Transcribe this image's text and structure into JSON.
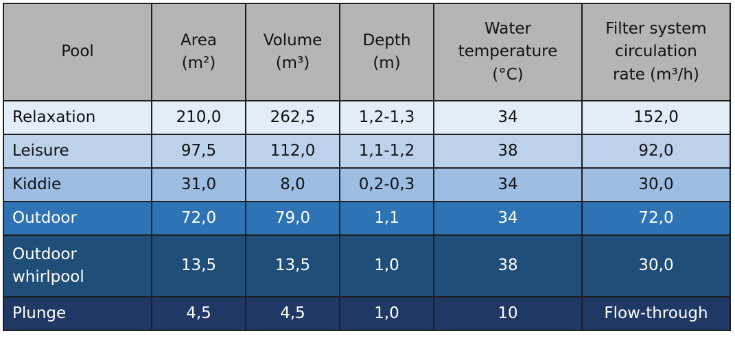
{
  "table": {
    "headers": [
      {
        "lines": [
          "Pool"
        ]
      },
      {
        "lines": [
          "Area",
          "(m²)"
        ]
      },
      {
        "lines": [
          "Volume",
          "(m³)"
        ]
      },
      {
        "lines": [
          "Depth",
          "(m)"
        ]
      },
      {
        "lines": [
          "Water",
          "temperature",
          "(°C)"
        ]
      },
      {
        "lines": [
          "Filter system",
          "circulation",
          "rate (m³/h)"
        ]
      }
    ],
    "rows": [
      {
        "pool": [
          "Relaxation"
        ],
        "area": "210,0",
        "volume": "262,5",
        "depth": "1,2-1,3",
        "temp": "34",
        "rate": "152,0"
      },
      {
        "pool": [
          "Leisure"
        ],
        "area": "97,5",
        "volume": "112,0",
        "depth": "1,1-1,2",
        "temp": "38",
        "rate": "92,0"
      },
      {
        "pool": [
          "Kiddie"
        ],
        "area": "31,0",
        "volume": "8,0",
        "depth": "0,2-0,3",
        "temp": "34",
        "rate": "30,0"
      },
      {
        "pool": [
          "Outdoor"
        ],
        "area": "72,0",
        "volume": "79,0",
        "depth": "1,1",
        "temp": "34",
        "rate": "72,0"
      },
      {
        "pool": [
          "Outdoor",
          "whirlpool"
        ],
        "area": "13,5",
        "volume": "13,5",
        "depth": "1,0",
        "temp": "38",
        "rate": "30,0"
      },
      {
        "pool": [
          "Plunge"
        ],
        "area": "4,5",
        "volume": "4,5",
        "depth": "1,0",
        "temp": "10",
        "rate": "Flow-through"
      }
    ]
  },
  "colors": {
    "header_bg": "#b5b5b5",
    "row_relaxation": "#e2edf7",
    "row_leisure": "#bcd2ea",
    "row_kiddie": "#9dbde2",
    "row_outdoor": "#2e74b5",
    "row_outdoor_whirlpool": "#1f4e79",
    "row_plunge": "#203864",
    "border": "#1e1e1e"
  }
}
